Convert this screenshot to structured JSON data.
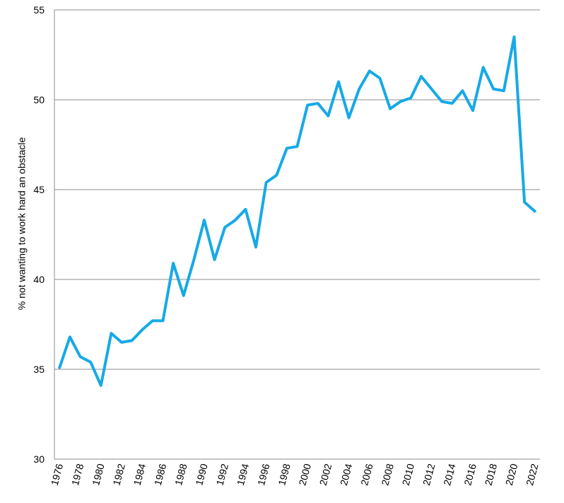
{
  "chart_data": {
    "type": "line",
    "title": "",
    "xlabel": "",
    "ylabel": "% not wanting to work hard an obstacle",
    "ylim": [
      30,
      55
    ],
    "yticks": [
      30,
      35,
      40,
      45,
      50,
      55
    ],
    "xticks": [
      1976,
      1978,
      1980,
      1982,
      1984,
      1986,
      1988,
      1990,
      1992,
      1994,
      1996,
      1998,
      2000,
      2002,
      2004,
      2006,
      2008,
      2010,
      2012,
      2014,
      2016,
      2018,
      2020,
      2022
    ],
    "grid": "horizontal",
    "series_color": "#17a9e6",
    "x": [
      1976,
      1977,
      1978,
      1979,
      1980,
      1981,
      1982,
      1983,
      1984,
      1985,
      1986,
      1987,
      1988,
      1989,
      1990,
      1991,
      1992,
      1993,
      1994,
      1995,
      1996,
      1997,
      1998,
      1999,
      2000,
      2001,
      2002,
      2003,
      2004,
      2005,
      2006,
      2007,
      2008,
      2009,
      2010,
      2011,
      2012,
      2013,
      2014,
      2015,
      2016,
      2017,
      2018,
      2019,
      2020,
      2021,
      2022
    ],
    "values": [
      35.1,
      36.8,
      35.7,
      35.4,
      34.1,
      37.0,
      36.5,
      36.6,
      37.2,
      37.7,
      37.7,
      40.9,
      39.1,
      41.1,
      43.3,
      41.1,
      42.9,
      43.3,
      43.9,
      41.8,
      45.4,
      45.8,
      47.3,
      47.4,
      49.7,
      49.8,
      49.1,
      51.0,
      49.0,
      50.6,
      51.6,
      51.2,
      49.5,
      49.9,
      50.1,
      51.3,
      50.6,
      49.9,
      49.8,
      50.5,
      49.4,
      51.8,
      50.6,
      50.5,
      53.5,
      44.3,
      43.8
    ]
  }
}
